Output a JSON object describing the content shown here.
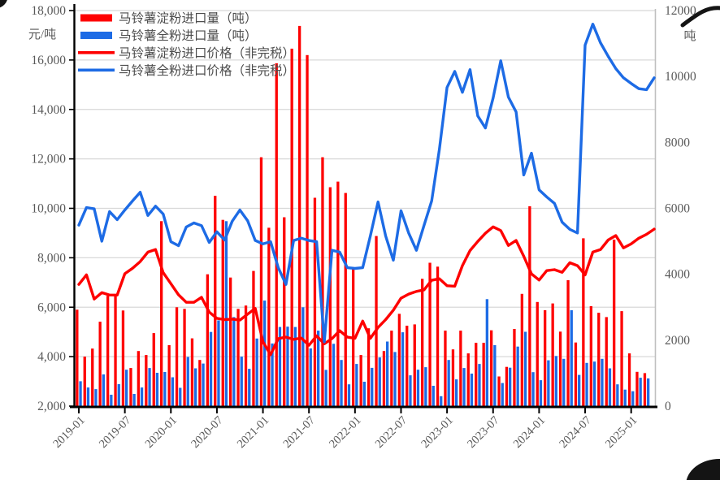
{
  "chart_data": {
    "type": "combo-bar-line",
    "title": "",
    "start_month": "2019-01",
    "months_count": 76,
    "x_tick_labels": [
      "2019-01",
      "2019-07",
      "2020-01",
      "2020-07",
      "2021-01",
      "2021-07",
      "2022-01",
      "2022-07",
      "2023-01",
      "2023-07",
      "2024-01",
      "2024-07",
      "2025-01"
    ],
    "left_axis": {
      "unit": "元/吨",
      "min": 2000,
      "max": 18000,
      "step": 2000,
      "tick_labels": [
        "18,000",
        "16,000",
        "14,000",
        "12,000",
        "10,000",
        "8,000",
        "6,000",
        "4,000",
        "2,000"
      ]
    },
    "right_axis": {
      "unit": "吨",
      "min": 0,
      "max": 12000,
      "step": 2000,
      "tick_labels": [
        "12000",
        "10000",
        "8000",
        "6000",
        "4000",
        "2000",
        "0"
      ]
    },
    "grid": true,
    "legend_position": "top-left-inside",
    "series": [
      {
        "name": "马铃薯淀粉进口量（吨）",
        "type": "bar",
        "axis": "right",
        "color": "#fe0000",
        "values": [
          2925,
          1500,
          1745,
          2560,
          3345,
          3370,
          2900,
          1155,
          1670,
          1550,
          2215,
          5610,
          1850,
          3000,
          2950,
          2055,
          1400,
          4000,
          6380,
          5650,
          3900,
          2950,
          3050,
          4100,
          7550,
          5410,
          10400,
          5730,
          10845,
          11535,
          10650,
          6320,
          7550,
          6640,
          6810,
          6465,
          4150,
          1550,
          2360,
          5160,
          1670,
          2290,
          2800,
          2440,
          2480,
          3860,
          4350,
          4230,
          2290,
          1720,
          2290,
          1600,
          1920,
          1920,
          2300,
          900,
          1190,
          2340,
          3405,
          6065,
          3160,
          2910,
          3115,
          2260,
          3820,
          1930,
          5090,
          3030,
          2830,
          2700,
          5050,
          2880,
          1600,
          1040,
          1000,
          null
        ]
      },
      {
        "name": "马铃薯全粉进口量（吨）",
        "type": "bar",
        "axis": "right",
        "color": "#1d6be5",
        "values": [
          755,
          565,
          515,
          960,
          345,
          665,
          1105,
          370,
          565,
          1155,
          1010,
          1035,
          875,
          555,
          1490,
          1145,
          1290,
          2250,
          2600,
          5610,
          2700,
          1500,
          1130,
          2050,
          3200,
          1900,
          2400,
          2410,
          2400,
          3000,
          1750,
          2290,
          1100,
          1890,
          1400,
          660,
          1280,
          740,
          1160,
          1475,
          1960,
          1640,
          2240,
          935,
          1105,
          1180,
          615,
          300,
          1400,
          810,
          1155,
          985,
          1280,
          3245,
          1850,
          700,
          1165,
          1805,
          2255,
          1030,
          785,
          1390,
          1520,
          1435,
          2910,
          945,
          1310,
          1350,
          1435,
          1145,
          660,
          500,
          450,
          860,
          840,
          null
        ]
      },
      {
        "name": "马铃薯淀粉进口价格（非完税）",
        "type": "line",
        "axis": "left",
        "color": "#fe0000",
        "values": [
          6920,
          7310,
          6330,
          6590,
          6495,
          6490,
          7355,
          7575,
          7845,
          8230,
          8330,
          7400,
          6950,
          6500,
          6200,
          6200,
          6400,
          5800,
          5550,
          5500,
          5520,
          5480,
          5720,
          5950,
          4600,
          4080,
          4730,
          4790,
          4700,
          4750,
          4460,
          4840,
          4520,
          4730,
          5050,
          4790,
          4740,
          5440,
          4740,
          5180,
          5500,
          5880,
          6365,
          6530,
          6640,
          6700,
          7090,
          7150,
          6870,
          6850,
          7680,
          8290,
          8660,
          8990,
          9250,
          9100,
          8500,
          8700,
          8060,
          7350,
          7100,
          7480,
          7520,
          7410,
          7800,
          7680,
          7310,
          8230,
          8330,
          8720,
          8900,
          8400,
          8560,
          8790,
          8950,
          9160
        ]
      },
      {
        "name": "马铃薯全粉进口价格（非完税）",
        "type": "line",
        "axis": "left",
        "color": "#1d6be5",
        "values": [
          9320,
          10030,
          9980,
          8670,
          9870,
          9540,
          9930,
          10300,
          10650,
          9710,
          10090,
          9770,
          8650,
          8490,
          9245,
          9410,
          9300,
          8620,
          9050,
          8720,
          9480,
          9930,
          9500,
          8700,
          8560,
          8650,
          7600,
          6920,
          8700,
          8790,
          8700,
          8650,
          4600,
          8300,
          8230,
          7600,
          7570,
          7600,
          8880,
          10260,
          8880,
          7900,
          9900,
          9000,
          8300,
          9310,
          10300,
          12390,
          14890,
          15540,
          14690,
          15610,
          13740,
          13250,
          14460,
          15970,
          14500,
          13900,
          11350,
          12230,
          10750,
          10460,
          10200,
          9440,
          9150,
          9000,
          16600,
          17450,
          16700,
          16150,
          15650,
          15280,
          15050,
          14840,
          14800,
          15280
        ]
      }
    ]
  },
  "colors": {
    "grid": "#d8d8d8",
    "axis": "#000000",
    "right_border": "#bfbfbf",
    "tick_label": "#595959",
    "legend_text": "#4d4d4d",
    "background": "#ffffff"
  }
}
